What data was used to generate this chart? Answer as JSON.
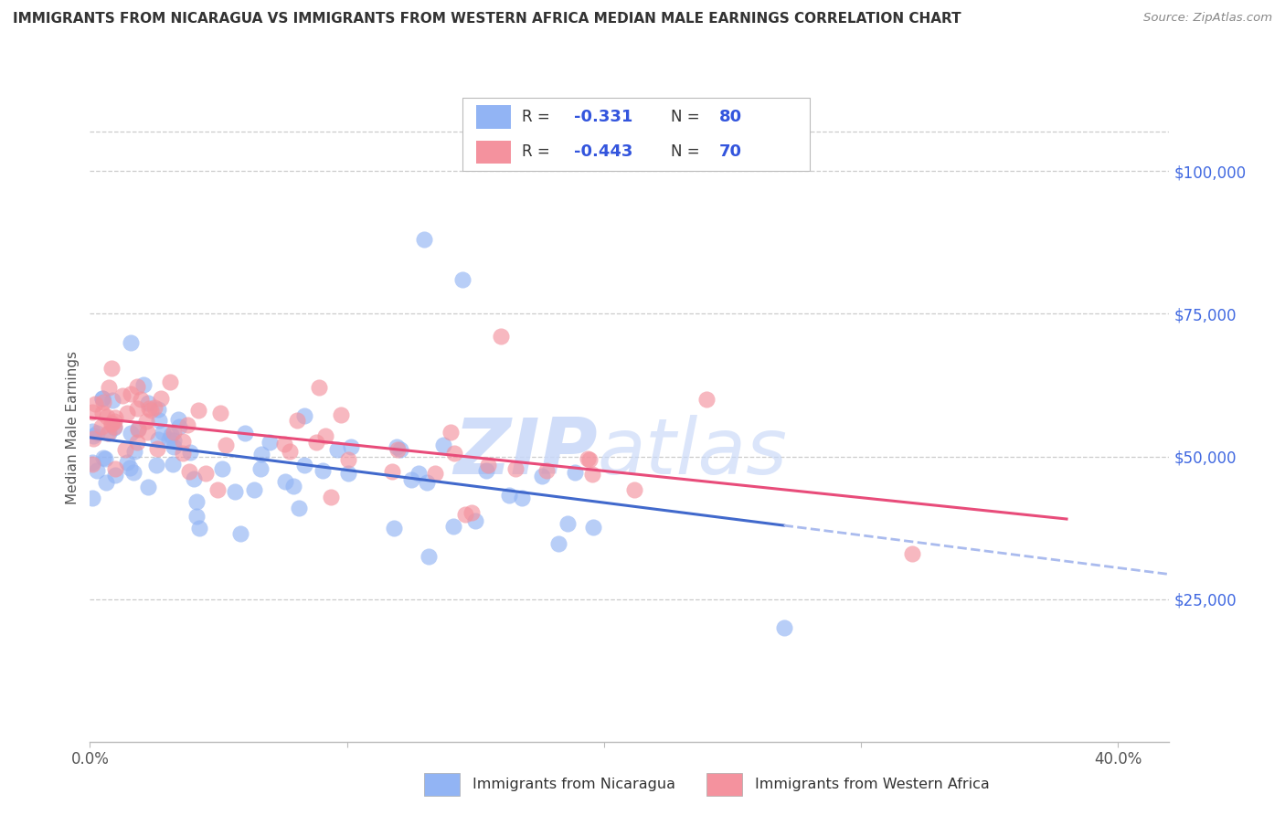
{
  "title": "IMMIGRANTS FROM NICARAGUA VS IMMIGRANTS FROM WESTERN AFRICA MEDIAN MALE EARNINGS CORRELATION CHART",
  "source": "Source: ZipAtlas.com",
  "ylabel": "Median Male Earnings",
  "legend_blue_r": "-0.331",
  "legend_blue_n": "80",
  "legend_pink_r": "-0.443",
  "legend_pink_n": "70",
  "xlim": [
    0.0,
    0.42
  ],
  "ylim": [
    0,
    110000
  ],
  "blue_color": "#92B4F4",
  "pink_color": "#F4929E",
  "blue_line_color": "#4169CC",
  "pink_line_color": "#E84C7A",
  "dashed_line_color": "#AABBEE",
  "right_tick_color": "#4169E1",
  "watermark_zip": "ZIP",
  "watermark_atlas": "atlas",
  "grid_color": "#CCCCCC",
  "title_color": "#333333",
  "source_color": "#888888"
}
